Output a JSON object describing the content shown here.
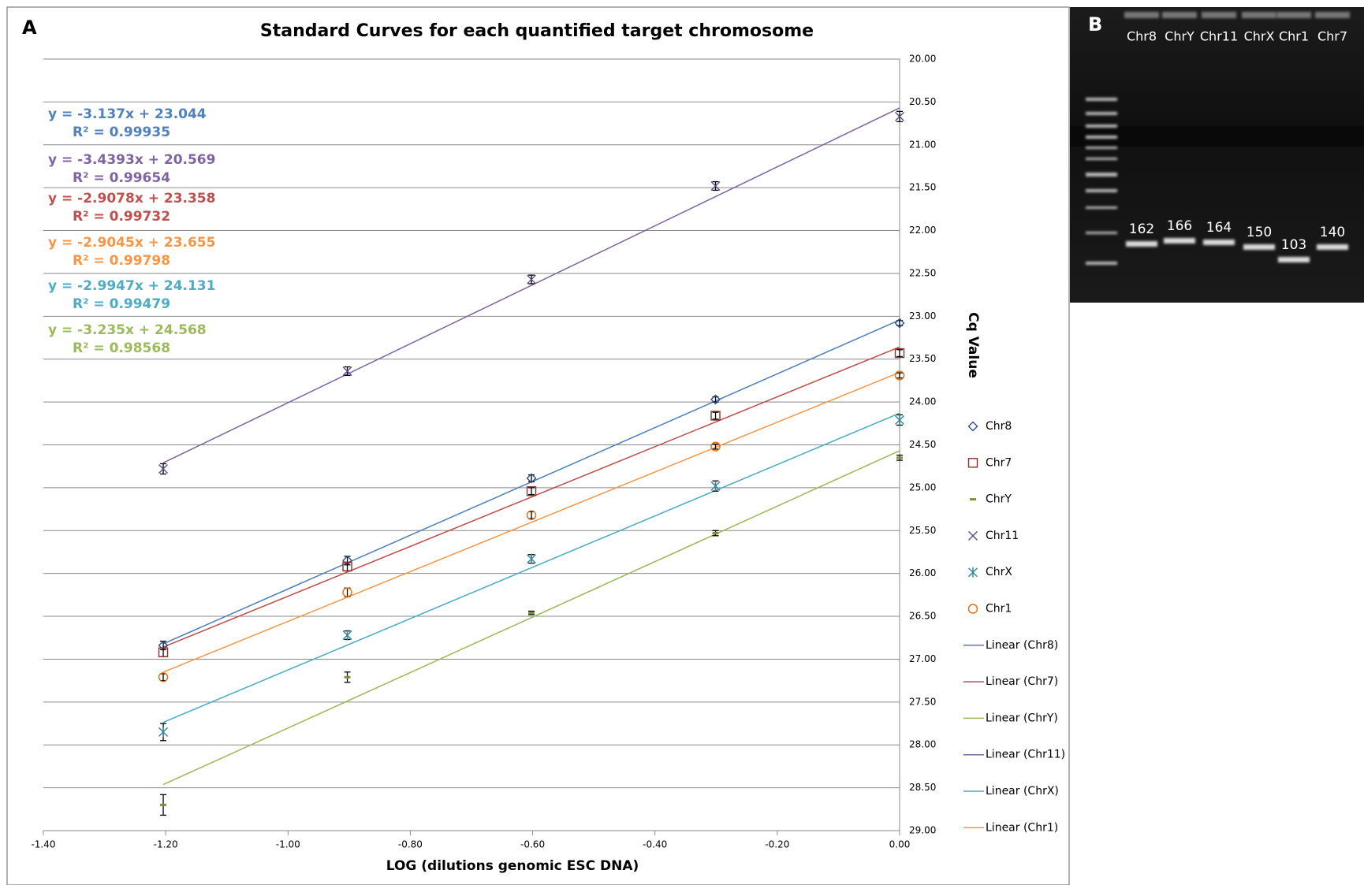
{
  "chart_data": {
    "type": "scatter",
    "panel_label": "A",
    "title": "Standard Curves for each quantified target chromosome",
    "x_label": "LOG (dilutions genomic ESC DNA)",
    "y_label": "Cq Value",
    "xlim": [
      -1.4,
      0
    ],
    "ylim": [
      29,
      20
    ],
    "xticks": [
      {
        "value": -1.4,
        "label": "-1.40"
      },
      {
        "value": -1.2,
        "label": "-1.20"
      },
      {
        "value": -1.0,
        "label": "-1.00"
      },
      {
        "value": -0.8,
        "label": "-0.80"
      },
      {
        "value": -0.6,
        "label": "-0.60"
      },
      {
        "value": -0.4,
        "label": "-0.40"
      },
      {
        "value": -0.2,
        "label": "-0.20"
      },
      {
        "value": 0,
        "label": "0.00"
      }
    ],
    "yticks": [
      {
        "value": 20,
        "label": "20.00"
      },
      {
        "value": 20.5,
        "label": "20.50"
      },
      {
        "value": 21,
        "label": "21.00"
      },
      {
        "value": 21.5,
        "label": "21.50"
      },
      {
        "value": 22,
        "label": "22.00"
      },
      {
        "value": 22.5,
        "label": "22.50"
      },
      {
        "value": 23,
        "label": "23.00"
      },
      {
        "value": 23.5,
        "label": "23.50"
      },
      {
        "value": 24,
        "label": "24.00"
      },
      {
        "value": 24.5,
        "label": "24.50"
      },
      {
        "value": 25,
        "label": "25.00"
      },
      {
        "value": 25.5,
        "label": "25.50"
      },
      {
        "value": 26,
        "label": "26.00"
      },
      {
        "value": 26.5,
        "label": "26.50"
      },
      {
        "value": 27,
        "label": "27.00"
      },
      {
        "value": 27.5,
        "label": "27.50"
      },
      {
        "value": 28,
        "label": "28.00"
      },
      {
        "value": 28.5,
        "label": "28.50"
      },
      {
        "value": 29,
        "label": "29.00"
      }
    ],
    "grid": true,
    "x": [
      -1.204,
      -0.903,
      -0.602,
      -0.301,
      0
    ],
    "series": [
      {
        "name": "Chr8",
        "marker": "diamond",
        "color": "#2f4f8f",
        "values": [
          26.84,
          25.85,
          24.89,
          23.97,
          23.08
        ],
        "errors": [
          0.05,
          0.05,
          0.04,
          0.03,
          0.03
        ],
        "trend": {
          "name": "Linear (Chr8)",
          "color": "#4a7ebb",
          "text_color": "#4f81bd",
          "equation": "y = -3.137x + 23.044",
          "r_squared": "R² = 0.99935",
          "slope": -3.137,
          "intercept": 23.044
        }
      },
      {
        "name": "Chr7",
        "marker": "square",
        "color": "#8b2d2a",
        "values": [
          26.92,
          25.92,
          25.04,
          24.16,
          23.43
        ],
        "errors": [
          0.05,
          0.05,
          0.04,
          0.04,
          0.04
        ],
        "trend": {
          "name": "Linear (Chr7)",
          "color": "#be4b48",
          "text_color": "#c0504d",
          "equation": "y = -2.9078x + 23.358",
          "r_squared": "R² = 0.99732",
          "slope": -2.9078,
          "intercept": 23.358
        }
      },
      {
        "name": "ChrY",
        "marker": "dash",
        "color": "#77933c",
        "values": [
          28.7,
          27.21,
          26.46,
          25.53,
          24.65
        ],
        "errors": [
          0.12,
          0.06,
          0.02,
          0.03,
          0.03
        ],
        "trend": {
          "name": "Linear (ChrY)",
          "color": "#98b954",
          "text_color": "#9bbb59",
          "equation": "y = -3.235x + 24.568",
          "r_squared": "R² = 0.98568",
          "slope": -3.235,
          "intercept": 24.568
        }
      },
      {
        "name": "Chr11",
        "marker": "cross",
        "color": "#5f4b8b",
        "values": [
          24.78,
          23.64,
          22.57,
          21.48,
          20.67
        ],
        "errors": [
          0.06,
          0.05,
          0.05,
          0.05,
          0.06
        ],
        "trend": {
          "name": "Linear (Chr11)",
          "color": "#7d60a0",
          "text_color": "#8064a2",
          "equation": "y = -3.4393x + 20.569",
          "r_squared": "R² = 0.99654",
          "slope": -3.4393,
          "intercept": 20.569
        }
      },
      {
        "name": "ChrX",
        "marker": "asterisk",
        "color": "#31859c",
        "values": [
          27.85,
          26.72,
          25.83,
          24.98,
          24.21
        ],
        "errors": [
          0.1,
          0.05,
          0.05,
          0.06,
          0.06
        ],
        "trend": {
          "name": "Linear (ChrX)",
          "color": "#46aac5",
          "text_color": "#4bacc6",
          "equation": "y = -2.9947x + 24.131",
          "r_squared": "R² = 0.99479",
          "slope": -2.9947,
          "intercept": 24.131
        }
      },
      {
        "name": "Chr1",
        "marker": "circle",
        "color": "#e46c0a",
        "values": [
          27.21,
          26.22,
          25.32,
          24.52,
          23.69
        ],
        "errors": [
          0.04,
          0.05,
          0.04,
          0.03,
          0.03
        ],
        "trend": {
          "name": "Linear (Chr1)",
          "color": "#f79646",
          "text_color": "#f79646",
          "equation": "y = -2.9045x + 23.655",
          "r_squared": "R² = 0.99798",
          "slope": -2.9045,
          "intercept": 23.655
        }
      }
    ]
  },
  "gel": {
    "panel_label": "B",
    "lanes": [
      {
        "name": "Chr8",
        "size": 162
      },
      {
        "name": "ChrY",
        "size": 166
      },
      {
        "name": "Chr11",
        "size": 164
      },
      {
        "name": "ChrX",
        "size": 150
      },
      {
        "name": "Chr1",
        "size": 103
      },
      {
        "name": "Chr7",
        "size": 140
      }
    ]
  }
}
